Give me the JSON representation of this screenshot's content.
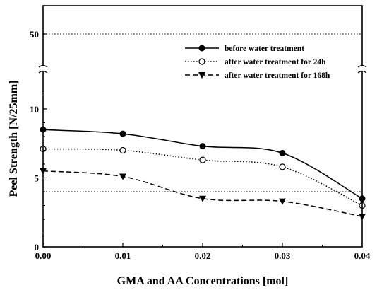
{
  "chart_data": {
    "type": "line",
    "xlabel": "GMA and AA Concentrations [mol]",
    "ylabel": "Peel Strength [N/25mm]",
    "x": [
      0.0,
      0.01,
      0.02,
      0.03,
      0.04
    ],
    "x_tick_labels": [
      "0.00",
      "0.01",
      "0.02",
      "0.03",
      "0.04"
    ],
    "xlim": [
      0.0,
      0.04
    ],
    "y_tick_labels": [
      "0",
      "5",
      "10",
      "50"
    ],
    "y_scale": "broken",
    "y_break_between": [
      10,
      50
    ],
    "ylim_lower": [
      0,
      12
    ],
    "reference_lines": [
      4,
      50
    ],
    "grid": false,
    "legend_position": "top-right",
    "series": [
      {
        "name": "before water treatment",
        "values": [
          8.5,
          8.2,
          7.3,
          6.8,
          3.5
        ],
        "marker": "filled-circle",
        "line": "solid"
      },
      {
        "name": "after water treatment for 24h",
        "values": [
          7.1,
          7.0,
          6.3,
          5.8,
          3.0
        ],
        "marker": "open-circle",
        "line": "dotted"
      },
      {
        "name": "after water treatment for 168h",
        "values": [
          5.5,
          5.1,
          3.5,
          3.3,
          2.2
        ],
        "marker": "filled-triangle-down",
        "line": "dashed"
      }
    ]
  }
}
